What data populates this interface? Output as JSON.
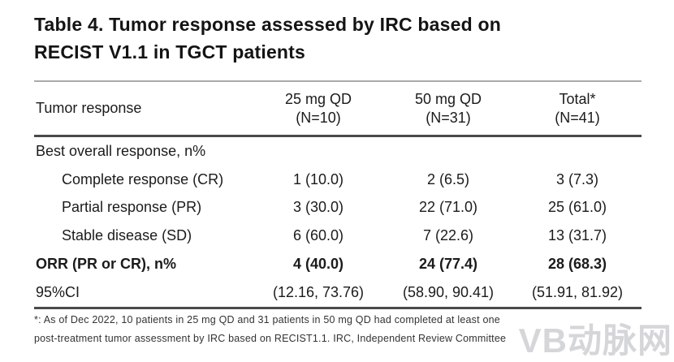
{
  "title": {
    "line1": "Table 4. Tumor response assessed by IRC based on",
    "line2": "RECIST V1.1 in TGCT patients"
  },
  "table": {
    "header": {
      "col1": "Tumor response",
      "cols": [
        {
          "line1": "25 mg QD",
          "line2": "(N=10)"
        },
        {
          "line1": "50 mg QD",
          "line2": "(N=31)"
        },
        {
          "line1": "Total*",
          "line2": "(N=41)"
        }
      ]
    },
    "rows": [
      {
        "label": "Best overall response, n%",
        "values": [
          "",
          "",
          ""
        ]
      },
      {
        "label": "Complete response (CR)",
        "values": [
          "1 (10.0)",
          "2 (6.5)",
          "3 (7.3)"
        ]
      },
      {
        "label": "Partial response (PR)",
        "values": [
          "3 (30.0)",
          "22 (71.0)",
          "25 (61.0)"
        ]
      },
      {
        "label": "Stable disease (SD)",
        "values": [
          "6 (60.0)",
          "7 (22.6)",
          "13 (31.7)"
        ]
      },
      {
        "label": "ORR (PR or CR), n%",
        "values": [
          "4 (40.0)",
          "24 (77.4)",
          "28 (68.3)"
        ]
      },
      {
        "label": "95%CI",
        "values": [
          "(12.16, 73.76)",
          "(58.90, 90.41)",
          "(51.91, 81.92)"
        ]
      }
    ]
  },
  "footnote": {
    "line1": "*: As of Dec 2022, 10 patients in 25 mg QD and 31 patients in 50 mg QD had completed at least one",
    "line2": "post-treatment tumor assessment by IRC based on RECIST1.1. IRC, Independent Review Committee"
  },
  "watermark": "VB动脉网",
  "colors": {
    "background": "#ffffff",
    "text": "#1b1b1b",
    "rule_light": "#aaaaaa",
    "rule_dark": "#4a4a4a",
    "watermark": "#9aa0a6"
  }
}
